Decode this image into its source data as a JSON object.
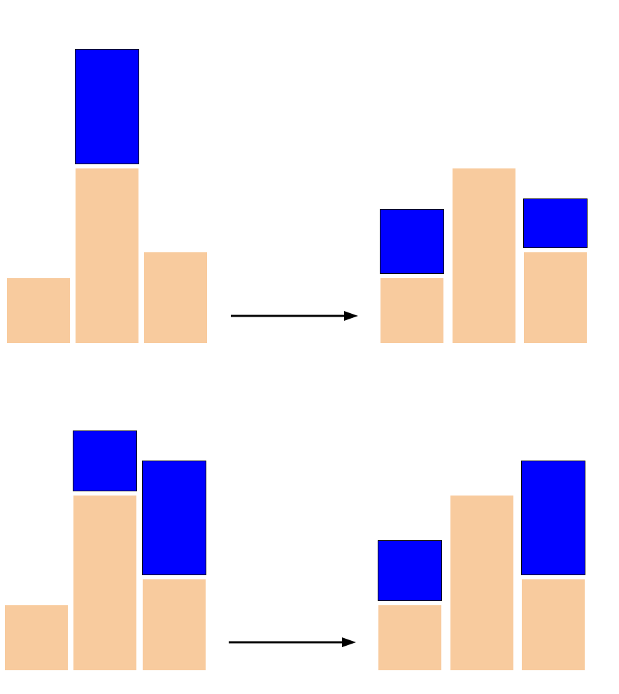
{
  "colors": {
    "base": "#F8CB9E",
    "moved": "#0000FF",
    "arrow": "#000000"
  },
  "rows": [
    {
      "name": "row-1",
      "before": {
        "columns": [
          {
            "base": 93,
            "moved": 0
          },
          {
            "base": 250,
            "moved": 165
          },
          {
            "base": 130,
            "moved": 0
          }
        ]
      },
      "after": {
        "columns": [
          {
            "base": 93,
            "moved": 93
          },
          {
            "base": 250,
            "moved": 0
          },
          {
            "base": 130,
            "moved": 71
          }
        ]
      }
    },
    {
      "name": "row-2",
      "before": {
        "columns": [
          {
            "base": 93,
            "moved": 0
          },
          {
            "base": 250,
            "moved": 87
          },
          {
            "base": 130,
            "moved": 164
          }
        ]
      },
      "after": {
        "columns": [
          {
            "base": 93,
            "moved": 87
          },
          {
            "base": 250,
            "moved": 0
          },
          {
            "base": 130,
            "moved": 164
          }
        ]
      }
    }
  ]
}
